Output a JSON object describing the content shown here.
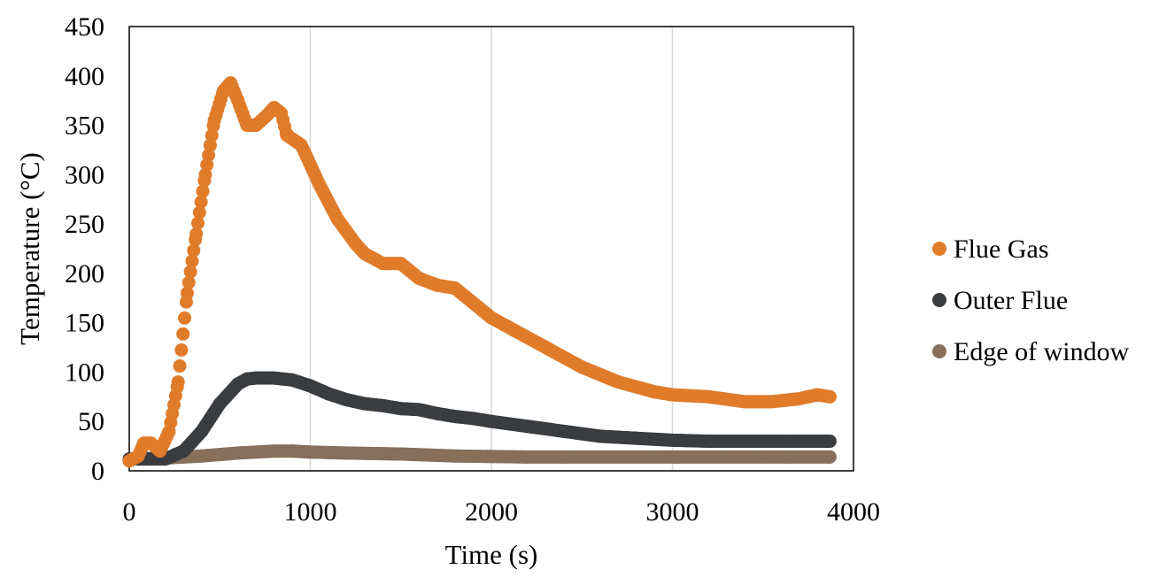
{
  "chart_data": {
    "type": "scatter",
    "title": "",
    "xlabel": "Time (s)",
    "ylabel": "Temperature (°C)",
    "xlim": [
      0,
      4000
    ],
    "ylim": [
      0,
      450
    ],
    "x_ticks": [
      0,
      1000,
      2000,
      3000,
      4000
    ],
    "y_ticks": [
      0,
      50,
      100,
      150,
      200,
      250,
      300,
      350,
      400,
      450
    ],
    "grid": "vertical",
    "legend_position": "right",
    "series": [
      {
        "name": "Flue Gas",
        "color": "#e07b2a",
        "points": [
          [
            0,
            10
          ],
          [
            50,
            15
          ],
          [
            80,
            28
          ],
          [
            120,
            28
          ],
          [
            170,
            20
          ],
          [
            220,
            40
          ],
          [
            270,
            90
          ],
          [
            320,
            180
          ],
          [
            370,
            240
          ],
          [
            420,
            300
          ],
          [
            470,
            355
          ],
          [
            520,
            385
          ],
          [
            560,
            393
          ],
          [
            600,
            375
          ],
          [
            650,
            350
          ],
          [
            700,
            350
          ],
          [
            760,
            360
          ],
          [
            800,
            368
          ],
          [
            840,
            362
          ],
          [
            870,
            340
          ],
          [
            950,
            330
          ],
          [
            1050,
            290
          ],
          [
            1150,
            255
          ],
          [
            1250,
            230
          ],
          [
            1300,
            220
          ],
          [
            1400,
            210
          ],
          [
            1500,
            210
          ],
          [
            1600,
            195
          ],
          [
            1700,
            188
          ],
          [
            1800,
            185
          ],
          [
            1900,
            170
          ],
          [
            2000,
            155
          ],
          [
            2150,
            140
          ],
          [
            2300,
            125
          ],
          [
            2500,
            105
          ],
          [
            2700,
            90
          ],
          [
            2900,
            80
          ],
          [
            3000,
            77
          ],
          [
            3200,
            75
          ],
          [
            3400,
            70
          ],
          [
            3550,
            70
          ],
          [
            3700,
            73
          ],
          [
            3800,
            77
          ],
          [
            3870,
            75
          ]
        ]
      },
      {
        "name": "Outer Flue",
        "color": "#3a3d40",
        "points": [
          [
            0,
            12
          ],
          [
            100,
            12
          ],
          [
            200,
            12
          ],
          [
            300,
            20
          ],
          [
            400,
            40
          ],
          [
            500,
            68
          ],
          [
            600,
            88
          ],
          [
            650,
            93
          ],
          [
            700,
            94
          ],
          [
            800,
            94
          ],
          [
            900,
            92
          ],
          [
            1000,
            86
          ],
          [
            1100,
            78
          ],
          [
            1200,
            72
          ],
          [
            1300,
            68
          ],
          [
            1400,
            66
          ],
          [
            1500,
            63
          ],
          [
            1600,
            62
          ],
          [
            1700,
            58
          ],
          [
            1800,
            55
          ],
          [
            1900,
            53
          ],
          [
            2000,
            50
          ],
          [
            2200,
            45
          ],
          [
            2400,
            40
          ],
          [
            2600,
            35
          ],
          [
            2800,
            33
          ],
          [
            3000,
            31
          ],
          [
            3200,
            30
          ],
          [
            3400,
            30
          ],
          [
            3600,
            30
          ],
          [
            3870,
            30
          ]
        ]
      },
      {
        "name": "Edge of window",
        "color": "#86705c",
        "points": [
          [
            0,
            12
          ],
          [
            200,
            13
          ],
          [
            400,
            15
          ],
          [
            600,
            18
          ],
          [
            800,
            20
          ],
          [
            900,
            20
          ],
          [
            1000,
            19
          ],
          [
            1200,
            18
          ],
          [
            1500,
            17
          ],
          [
            1800,
            15
          ],
          [
            2200,
            14
          ],
          [
            2600,
            14
          ],
          [
            3000,
            14
          ],
          [
            3500,
            14
          ],
          [
            3870,
            14
          ]
        ]
      }
    ]
  }
}
